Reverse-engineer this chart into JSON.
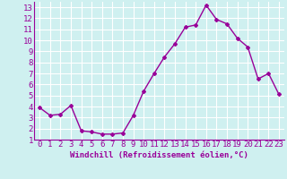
{
  "x": [
    0,
    1,
    2,
    3,
    4,
    5,
    6,
    7,
    8,
    9,
    10,
    11,
    12,
    13,
    14,
    15,
    16,
    17,
    18,
    19,
    20,
    21,
    22,
    23
  ],
  "y": [
    3.9,
    3.2,
    3.3,
    4.1,
    1.8,
    1.7,
    1.5,
    1.5,
    1.6,
    3.2,
    5.4,
    7.0,
    8.5,
    9.7,
    11.2,
    11.4,
    13.2,
    11.9,
    11.5,
    10.2,
    9.4,
    6.5,
    7.0,
    5.1
  ],
  "line_color": "#990099",
  "marker": "D",
  "marker_size": 2,
  "bg_color": "#cff0f0",
  "grid_color": "#ffffff",
  "xlabel": "Windchill (Refroidissement éolien,°C)",
  "xlim": [
    -0.5,
    23.5
  ],
  "ylim": [
    1,
    13.5
  ],
  "yticks": [
    1,
    2,
    3,
    4,
    5,
    6,
    7,
    8,
    9,
    10,
    11,
    12,
    13
  ],
  "xticks": [
    0,
    1,
    2,
    3,
    4,
    5,
    6,
    7,
    8,
    9,
    10,
    11,
    12,
    13,
    14,
    15,
    16,
    17,
    18,
    19,
    20,
    21,
    22,
    23
  ],
  "xlabel_fontsize": 6.5,
  "tick_fontsize": 6.5,
  "line_width": 1.0
}
